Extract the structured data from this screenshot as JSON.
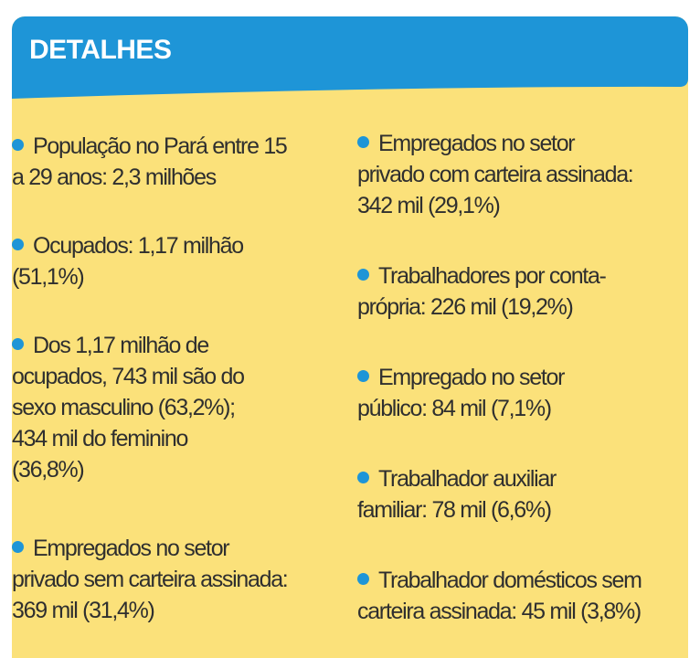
{
  "colors": {
    "background": "#fbe17a",
    "header": "#1e95d7",
    "bullet": "#1e95d7",
    "text": "#2f2f2f"
  },
  "header": {
    "title": "DETALHES"
  },
  "left_column": {
    "items": [
      {
        "lines": [
          "População no Pará entre 15",
          "a 29 anos: 2,3 milhões"
        ]
      },
      {
        "lines": [
          "Ocupados: 1,17 milhão",
          "(51,1%)"
        ]
      },
      {
        "lines": [
          "Dos 1,17 milhão de",
          "ocupados, 743 mil são do",
          "sexo masculino (63,2%);",
          "434 mil do feminino",
          "(36,8%)"
        ]
      },
      {
        "lines": [
          "Empregados no setor",
          "privado sem carteira assinada:",
          "369 mil (31,4%)"
        ]
      }
    ]
  },
  "right_column": {
    "items": [
      {
        "lines": [
          "Empregados no setor",
          "privado com carteira assinada:",
          "342 mil (29,1%)"
        ]
      },
      {
        "lines": [
          "Trabalhadores por conta-",
          "própria: 226 mil (19,2%)"
        ]
      },
      {
        "lines": [
          "Empregado no setor",
          "público: 84 mil (7,1%)"
        ]
      },
      {
        "lines": [
          "Trabalhador auxiliar",
          "familiar: 78 mil (6,6%)"
        ]
      },
      {
        "lines": [
          "Trabalhador domésticos sem",
          "carteira assinada: 45 mil (3,8%)"
        ]
      }
    ]
  }
}
